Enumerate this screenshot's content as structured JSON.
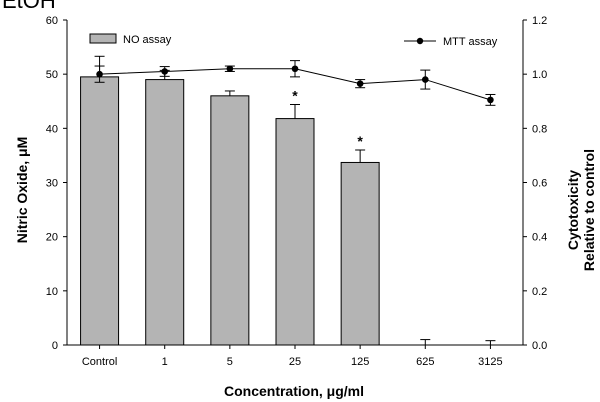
{
  "cropped_text": "EtOH",
  "chart_data": {
    "type": "bar",
    "categories": [
      "Control",
      "1",
      "5",
      "25",
      "125",
      "625",
      "3125"
    ],
    "xlabel": "Concentration, μg/ml",
    "ylabel": "Nitric Oxide, μM",
    "y2label_line1": "Cytotoxicity",
    "y2label_line2": "Relative to control",
    "ylim": [
      0,
      60
    ],
    "y2lim": [
      0,
      1.2
    ],
    "yticks": [
      "0",
      "10",
      "20",
      "30",
      "40",
      "50",
      "60"
    ],
    "y2ticks": [
      "0.0",
      "0.2",
      "0.4",
      "0.6",
      "0.8",
      "1.0",
      "1.2"
    ],
    "legend_placement": "top-left and top-right",
    "series": [
      {
        "name": "NO assay",
        "kind": "bar",
        "axis": "left",
        "values": [
          49.5,
          49.0,
          46.0,
          41.8,
          33.7,
          0,
          0
        ],
        "errors": [
          3.8,
          1.7,
          0.9,
          2.6,
          2.3,
          1.0,
          0.8
        ],
        "color": "#b4b4b4"
      },
      {
        "name": "MTT assay",
        "kind": "line",
        "axis": "right",
        "values": [
          1.0,
          1.01,
          1.02,
          1.02,
          0.965,
          0.98,
          0.905
        ],
        "errors": [
          0.03,
          0.018,
          0.01,
          0.03,
          0.015,
          0.035,
          0.02
        ],
        "color": "#000000"
      }
    ],
    "annotations": [
      {
        "category": "25",
        "text": "*"
      },
      {
        "category": "125",
        "text": "*"
      }
    ]
  }
}
